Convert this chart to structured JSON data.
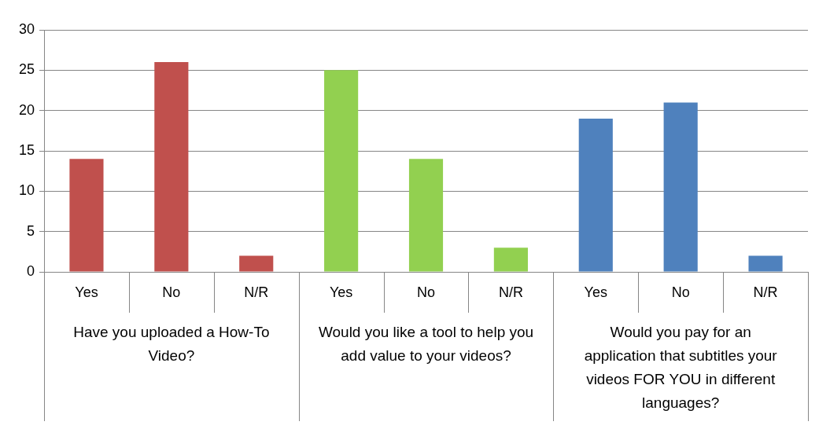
{
  "chart_data": {
    "type": "bar",
    "categories": [
      "Yes",
      "No",
      "N/R",
      "Yes",
      "No",
      "N/R",
      "Yes",
      "No",
      "N/R"
    ],
    "values": [
      14,
      26,
      2,
      25,
      14,
      3,
      19,
      21,
      2
    ],
    "colors": [
      "#c0504d",
      "#c0504d",
      "#c0504d",
      "#92d050",
      "#92d050",
      "#92d050",
      "#4f81bd",
      "#4f81bd",
      "#4f81bd"
    ],
    "annotations": [
      "Have you uploaded a How-To Video?",
      "Would you like a tool to help you add value to your videos?",
      "Would you pay for an application that subtitles your videos FOR YOU in different languages?"
    ],
    "ylim": [
      0,
      30
    ],
    "yticks": [
      0,
      5,
      10,
      15,
      20,
      25,
      30
    ],
    "grid": "y",
    "legend": false
  }
}
